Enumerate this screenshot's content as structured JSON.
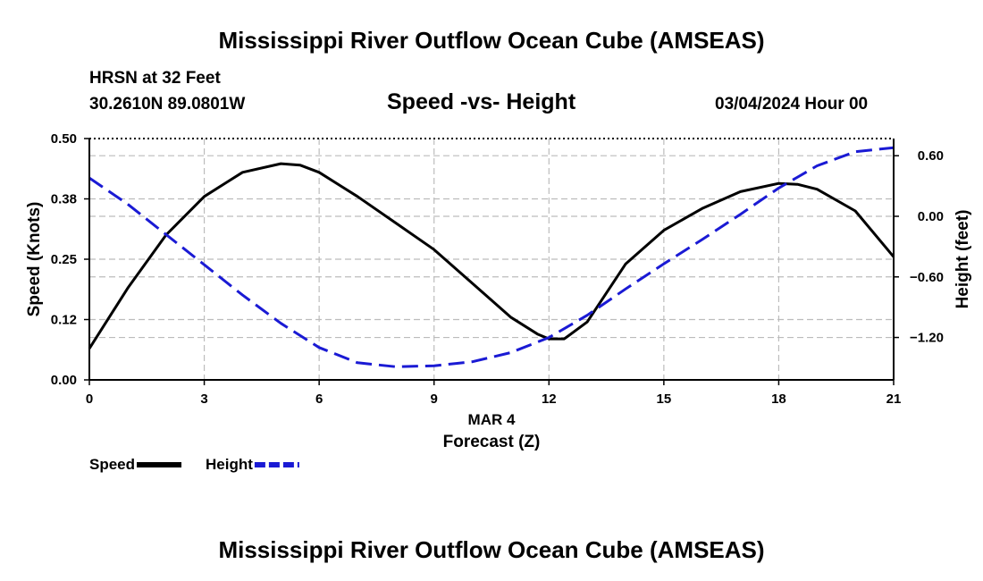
{
  "header": {
    "title": "Mississippi River Outflow Ocean Cube (AMSEAS)",
    "station": "HRSN at 32 Feet",
    "coords": "30.2610N  89.0801W",
    "chart_title": "Speed -vs- Height",
    "date": "03/04/2024 Hour 00"
  },
  "footer": {
    "title": "Mississippi River Outflow Ocean Cube (AMSEAS)"
  },
  "chart_data": {
    "type": "line",
    "title": "Speed -vs- Height",
    "xlabel": "Forecast (Z)",
    "xlabel_date": "MAR 4",
    "ylabel": "Speed (Knots)",
    "y2label": "Height (feet)",
    "xlim": [
      0,
      21
    ],
    "ylim": [
      0,
      0.5
    ],
    "y2lim": [
      -1.62,
      0.77
    ],
    "x_ticks": [
      0,
      3,
      6,
      9,
      12,
      15,
      18,
      21
    ],
    "x_tick_labels": [
      "0",
      "3",
      "6",
      "9",
      "12",
      "15",
      "18",
      "21"
    ],
    "y_ticks": [
      0,
      0.125,
      0.25,
      0.375,
      0.5
    ],
    "y_tick_labels": [
      "0.00",
      "0.12",
      "0.25",
      "0.38",
      "0.50"
    ],
    "y2_ticks": [
      0.6,
      0,
      -0.6,
      -1.2
    ],
    "y2_tick_labels": [
      "0.60",
      "0.00",
      "−0.60",
      "−1.20"
    ],
    "grid": true,
    "series": [
      {
        "name": "Speed",
        "axis": "left",
        "color": "#000000",
        "dash": "solid",
        "x": [
          0,
          1,
          2,
          3,
          4,
          5,
          5.5,
          6,
          7,
          8,
          9,
          10,
          11,
          11.7,
          12,
          12.4,
          13,
          14,
          15,
          16,
          17,
          18,
          18.5,
          19,
          20,
          21
        ],
        "values": [
          0.065,
          0.19,
          0.3,
          0.38,
          0.43,
          0.448,
          0.445,
          0.43,
          0.38,
          0.325,
          0.27,
          0.2,
          0.13,
          0.095,
          0.085,
          0.085,
          0.12,
          0.24,
          0.31,
          0.355,
          0.39,
          0.407,
          0.405,
          0.395,
          0.35,
          0.255
        ]
      },
      {
        "name": "Height",
        "axis": "right",
        "color": "#1a1ad4",
        "dash": "dashed",
        "x": [
          0,
          1,
          2,
          3,
          4,
          5,
          6,
          7,
          8,
          9,
          10,
          11,
          12,
          13,
          14,
          15,
          16,
          17,
          18,
          19,
          20,
          21
        ],
        "values": [
          0.38,
          0.12,
          -0.18,
          -0.48,
          -0.78,
          -1.06,
          -1.3,
          -1.45,
          -1.49,
          -1.48,
          -1.44,
          -1.35,
          -1.2,
          -0.98,
          -0.72,
          -0.47,
          -0.23,
          0.02,
          0.28,
          0.5,
          0.64,
          0.68
        ]
      }
    ],
    "legend": [
      {
        "label": "Speed",
        "color": "#000000",
        "dash": "solid"
      },
      {
        "label": "Height",
        "color": "#1a1ad4",
        "dash": "dashed"
      }
    ]
  }
}
